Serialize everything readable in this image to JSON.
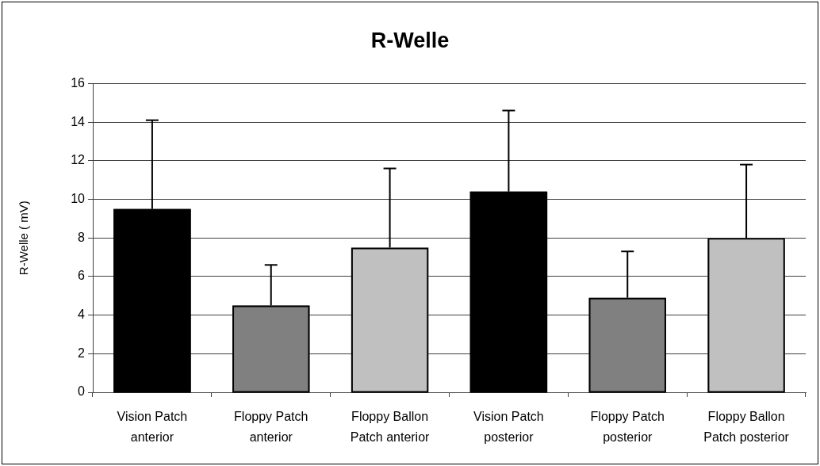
{
  "chart_data": {
    "type": "bar",
    "title": "R-Welle",
    "ylabel": "R-Welle ( mV)",
    "categories": [
      "Vision Patch anterior",
      "Floppy Patch anterior",
      "Floppy Ballon Patch anterior",
      "Vision Patch posterior",
      "Floppy Patch posterior",
      "Floppy Ballon Patch posterior"
    ],
    "values": [
      9.5,
      4.5,
      7.5,
      10.4,
      4.9,
      8.0
    ],
    "colors": [
      "#000000",
      "#808080",
      "#c0c0c0",
      "#000000",
      "#808080",
      "#c0c0c0"
    ],
    "errors": [
      [
        9.5,
        14.1
      ],
      [
        4.5,
        6.6
      ],
      [
        7.5,
        11.6
      ],
      [
        10.4,
        14.6
      ],
      [
        4.9,
        7.3
      ],
      [
        8.0,
        11.8
      ]
    ],
    "ylim": [
      0,
      16
    ],
    "yticks": [
      0,
      2,
      4,
      6,
      8,
      10,
      12,
      14,
      16
    ],
    "grid": "y"
  }
}
